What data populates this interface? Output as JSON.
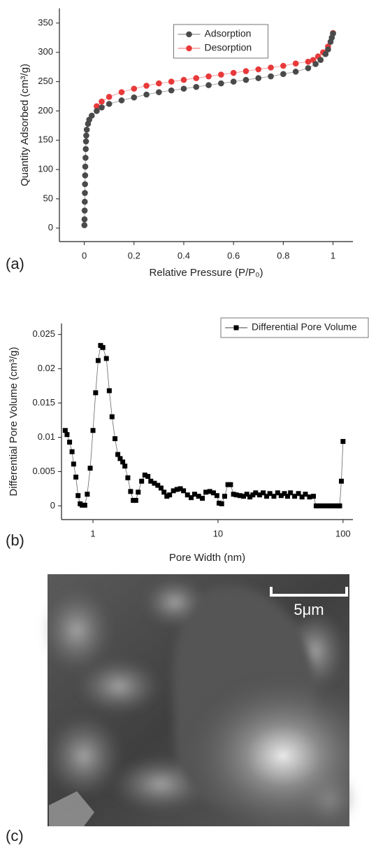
{
  "chart_data": [
    {
      "type": "line",
      "x_label": "Relative Pressure (P/P₀)",
      "y_label": "Quantity Adsorbed (cm³/g)",
      "xlim": [
        -0.1,
        1.08
      ],
      "xticks": [
        0,
        0.2,
        0.4,
        0.6,
        0.8,
        1
      ],
      "ylim": [
        -23,
        375
      ],
      "yticks": [
        0,
        50,
        100,
        150,
        200,
        250,
        300,
        350
      ],
      "marker": "circle",
      "legend": "top-center",
      "series": [
        {
          "name": "Adsorption",
          "color": "#4a4a4a",
          "x": [
            0.0005,
            0.001,
            0.0015,
            0.002,
            0.0025,
            0.003,
            0.0035,
            0.004,
            0.005,
            0.006,
            0.007,
            0.008,
            0.01,
            0.015,
            0.02,
            0.03,
            0.05,
            0.07,
            0.1,
            0.15,
            0.2,
            0.25,
            0.3,
            0.35,
            0.4,
            0.45,
            0.5,
            0.55,
            0.6,
            0.65,
            0.7,
            0.75,
            0.8,
            0.85,
            0.9,
            0.93,
            0.95,
            0.97,
            0.98,
            0.99,
            0.995,
            1.0
          ],
          "values": [
            5,
            15,
            30,
            45,
            60,
            75,
            90,
            105,
            120,
            135,
            148,
            158,
            168,
            178,
            185,
            192,
            200,
            206,
            212,
            218,
            223,
            228,
            232,
            235,
            238,
            241,
            244,
            247,
            250,
            253,
            256,
            259,
            263,
            267,
            273,
            280,
            287,
            297,
            305,
            318,
            325,
            332
          ]
        },
        {
          "name": "Desorption",
          "color": "#e8393a",
          "x": [
            1.0,
            0.98,
            0.96,
            0.94,
            0.92,
            0.9,
            0.85,
            0.8,
            0.75,
            0.7,
            0.65,
            0.6,
            0.55,
            0.5,
            0.45,
            0.4,
            0.35,
            0.3,
            0.25,
            0.2,
            0.15,
            0.1,
            0.07,
            0.05
          ],
          "values": [
            333,
            310,
            300,
            293,
            287,
            284,
            281,
            277,
            274,
            271,
            268,
            265,
            262,
            259,
            256,
            253,
            250,
            247,
            243,
            238,
            232,
            224,
            216,
            208
          ]
        }
      ]
    },
    {
      "type": "line",
      "x_label": "Pore Width (nm)",
      "y_label": "Differential Pore Volume (cm³/g)",
      "xscale": "log",
      "xlim": [
        0.56,
        120
      ],
      "xticks": [
        1,
        10,
        100
      ],
      "ylim": [
        -0.002,
        0.0266
      ],
      "yticks": [
        0,
        0.005,
        0.01,
        0.015,
        0.02,
        0.025
      ],
      "marker": "square",
      "legend": "top-right",
      "series": [
        {
          "name": "Differential Pore Volume",
          "color": "#000000",
          "x": [
            0.6,
            0.62,
            0.65,
            0.68,
            0.7,
            0.73,
            0.76,
            0.79,
            0.82,
            0.86,
            0.9,
            0.95,
            1.0,
            1.05,
            1.1,
            1.15,
            1.2,
            1.28,
            1.35,
            1.42,
            1.5,
            1.58,
            1.65,
            1.73,
            1.8,
            1.9,
            2.0,
            2.1,
            2.2,
            2.3,
            2.45,
            2.6,
            2.75,
            2.9,
            3.1,
            3.3,
            3.5,
            3.7,
            3.9,
            4.1,
            4.4,
            4.7,
            5.0,
            5.3,
            5.7,
            6.1,
            6.5,
            7.0,
            7.5,
            8.0,
            8.6,
            9.2,
            9.8,
            10.2,
            10.7,
            11.3,
            12,
            12.6,
            13.3,
            14,
            15,
            16,
            17,
            18,
            19,
            20,
            21.5,
            23,
            24.5,
            26,
            28,
            30,
            32,
            34,
            36,
            38,
            41,
            44,
            47,
            50,
            54,
            58,
            61,
            65,
            70,
            75,
            80,
            85,
            90,
            94,
            97,
            100
          ],
          "values": [
            0.011,
            0.0104,
            0.0093,
            0.0079,
            0.0061,
            0.0042,
            0.0015,
            0.0003,
            0.0001,
            0.0001,
            0.0017,
            0.0055,
            0.011,
            0.0165,
            0.0212,
            0.0234,
            0.0231,
            0.0215,
            0.0168,
            0.013,
            0.0098,
            0.0075,
            0.0069,
            0.0064,
            0.0058,
            0.0041,
            0.0021,
            0.0008,
            0.0008,
            0.002,
            0.0036,
            0.0045,
            0.0043,
            0.0036,
            0.0033,
            0.003,
            0.0026,
            0.002,
            0.0014,
            0.0016,
            0.0022,
            0.0024,
            0.0025,
            0.0022,
            0.0016,
            0.0012,
            0.0017,
            0.0014,
            0.0011,
            0.002,
            0.0021,
            0.0019,
            0.0015,
            0.0004,
            0.0003,
            0.0014,
            0.0031,
            0.0031,
            0.0017,
            0.0016,
            0.0015,
            0.0014,
            0.0017,
            0.0013,
            0.0016,
            0.0019,
            0.0016,
            0.0019,
            0.0014,
            0.0018,
            0.0014,
            0.0019,
            0.0015,
            0.0018,
            0.0014,
            0.0019,
            0.0014,
            0.0018,
            0.0013,
            0.0017,
            0.0013,
            0.0014,
            0,
            0,
            0,
            0,
            0,
            0,
            0,
            0,
            0.0036,
            0.0094
          ]
        }
      ]
    }
  ],
  "panel_labels": [
    "(a)",
    "(b)",
    "(c)"
  ],
  "micrograph": {
    "scale_bar": "5μm"
  }
}
